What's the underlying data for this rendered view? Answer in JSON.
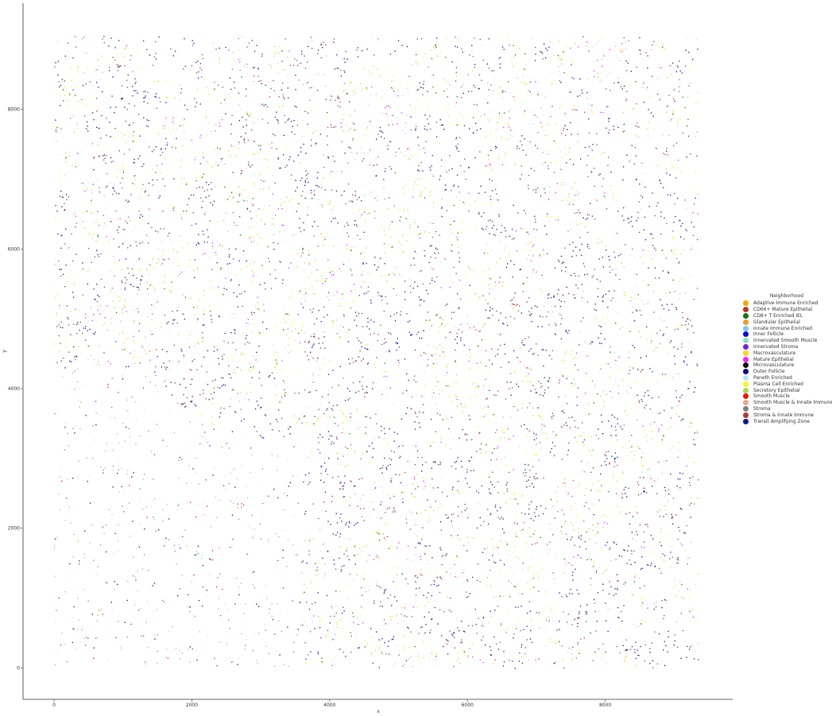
{
  "chart_data": {
    "type": "scatter",
    "title": "",
    "xlabel": "x",
    "ylabel": "y",
    "xlim": [
      -450,
      9850
    ],
    "ylim": [
      -450,
      9520
    ],
    "x_ticks": [
      0,
      2000,
      4000,
      6000,
      8000
    ],
    "y_ticks": [
      0,
      2000,
      4000,
      6000,
      8000
    ],
    "grid": false,
    "legend_position": "right",
    "legend_title": "Neighborhood",
    "series": [
      {
        "name": "Adaptive Immune Enriched",
        "color": "#f2a500"
      },
      {
        "name": "CD66+ Mature Epithelial",
        "color": "#b8302a"
      },
      {
        "name": "CD8+ T Enriched IEL",
        "color": "#0b7a0b"
      },
      {
        "name": "Glandular Epithelial",
        "color": "#f39a2c"
      },
      {
        "name": "Innate Immune Enriched",
        "color": "#7cc8f0"
      },
      {
        "name": "Inner Follicle",
        "color": "#0a0ad8"
      },
      {
        "name": "Innervated Smooth Muscle",
        "color": "#8ee0b8"
      },
      {
        "name": "Innervated Stroma",
        "color": "#7a1fd6"
      },
      {
        "name": "Macrovasculature",
        "color": "#ffd11a"
      },
      {
        "name": "Mature Epithelial",
        "color": "#ff22ff"
      },
      {
        "name": "Microvasculature",
        "color": "#111111"
      },
      {
        "name": "Outer Follicle",
        "color": "#0a0a85"
      },
      {
        "name": "Paneth Enriched",
        "color": "#b8e4ee"
      },
      {
        "name": "Plasma Cell Enriched",
        "color": "#f5f51a"
      },
      {
        "name": "Secretory Epithelial",
        "color": "#a8d85a"
      },
      {
        "name": "Smooth Muscle",
        "color": "#ee1111"
      },
      {
        "name": "Smooth Muscle & Innate Immune",
        "color": "#e8a890"
      },
      {
        "name": "Stroma",
        "color": "#808080"
      },
      {
        "name": "Stroma & Innate Immune",
        "color": "#a83a3a"
      },
      {
        "name": "Transit Amplifying Zone",
        "color": "#16168a"
      }
    ]
  }
}
